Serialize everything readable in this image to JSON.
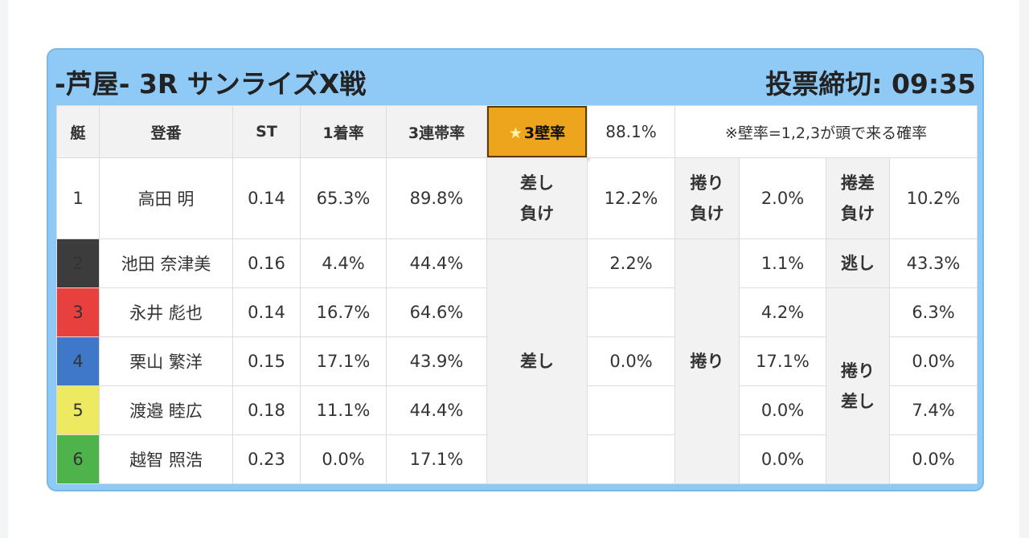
{
  "header": {
    "title": "-芦屋- 3R サンライズX戦",
    "deadline": "投票締切: 09:35"
  },
  "columns": {
    "boat": "艇",
    "name": "登番",
    "st": "ST",
    "win": "1着率",
    "top3": "3連帯率",
    "wall_star": "★",
    "wall": "3壁率",
    "wall_value": "88.1%",
    "note": "※壁率=1,2,3が頭で来る確率"
  },
  "row1": {
    "boat": "1",
    "name": "高田 明",
    "st": "0.14",
    "win": "65.3%",
    "top3": "89.8%",
    "sashi_make_1": "差し",
    "sashi_make_2": "負け",
    "sashi_make_val": "12.2%",
    "makuri_make_1": "捲り",
    "makuri_make_2": "負け",
    "makuri_make_val": "2.0%",
    "makurisashi_make_1": "捲差",
    "makurisashi_make_2": "負け",
    "makurisashi_make_val": "10.2%"
  },
  "racers": [
    {
      "boat": "2",
      "name": "池田 奈津美",
      "st": "0.16",
      "win": "4.4%",
      "top3": "44.4%"
    },
    {
      "boat": "3",
      "name": "永井 彪也",
      "st": "0.14",
      "win": "16.7%",
      "top3": "64.6%"
    },
    {
      "boat": "4",
      "name": "栗山 繁洋",
      "st": "0.15",
      "win": "17.1%",
      "top3": "43.9%"
    },
    {
      "boat": "5",
      "name": "渡邉 睦広",
      "st": "0.18",
      "win": "11.1%",
      "top3": "44.4%"
    },
    {
      "boat": "6",
      "name": "越智 照浩",
      "st": "0.23",
      "win": "0.0%",
      "top3": "17.1%"
    }
  ],
  "sashi": {
    "label": "差し",
    "val_row2": "2.2%",
    "val_row4": "0.0%"
  },
  "makuri": {
    "label": "捲り",
    "vals": [
      "1.1%",
      "4.2%",
      "17.1%",
      "0.0%",
      "0.0%"
    ]
  },
  "nige": {
    "label": "逃し",
    "val": "43.3%"
  },
  "makurisashi": {
    "label_1": "捲り",
    "label_2": "差し",
    "vals": [
      "6.3%",
      "0.0%",
      "7.4%",
      "0.0%"
    ]
  }
}
